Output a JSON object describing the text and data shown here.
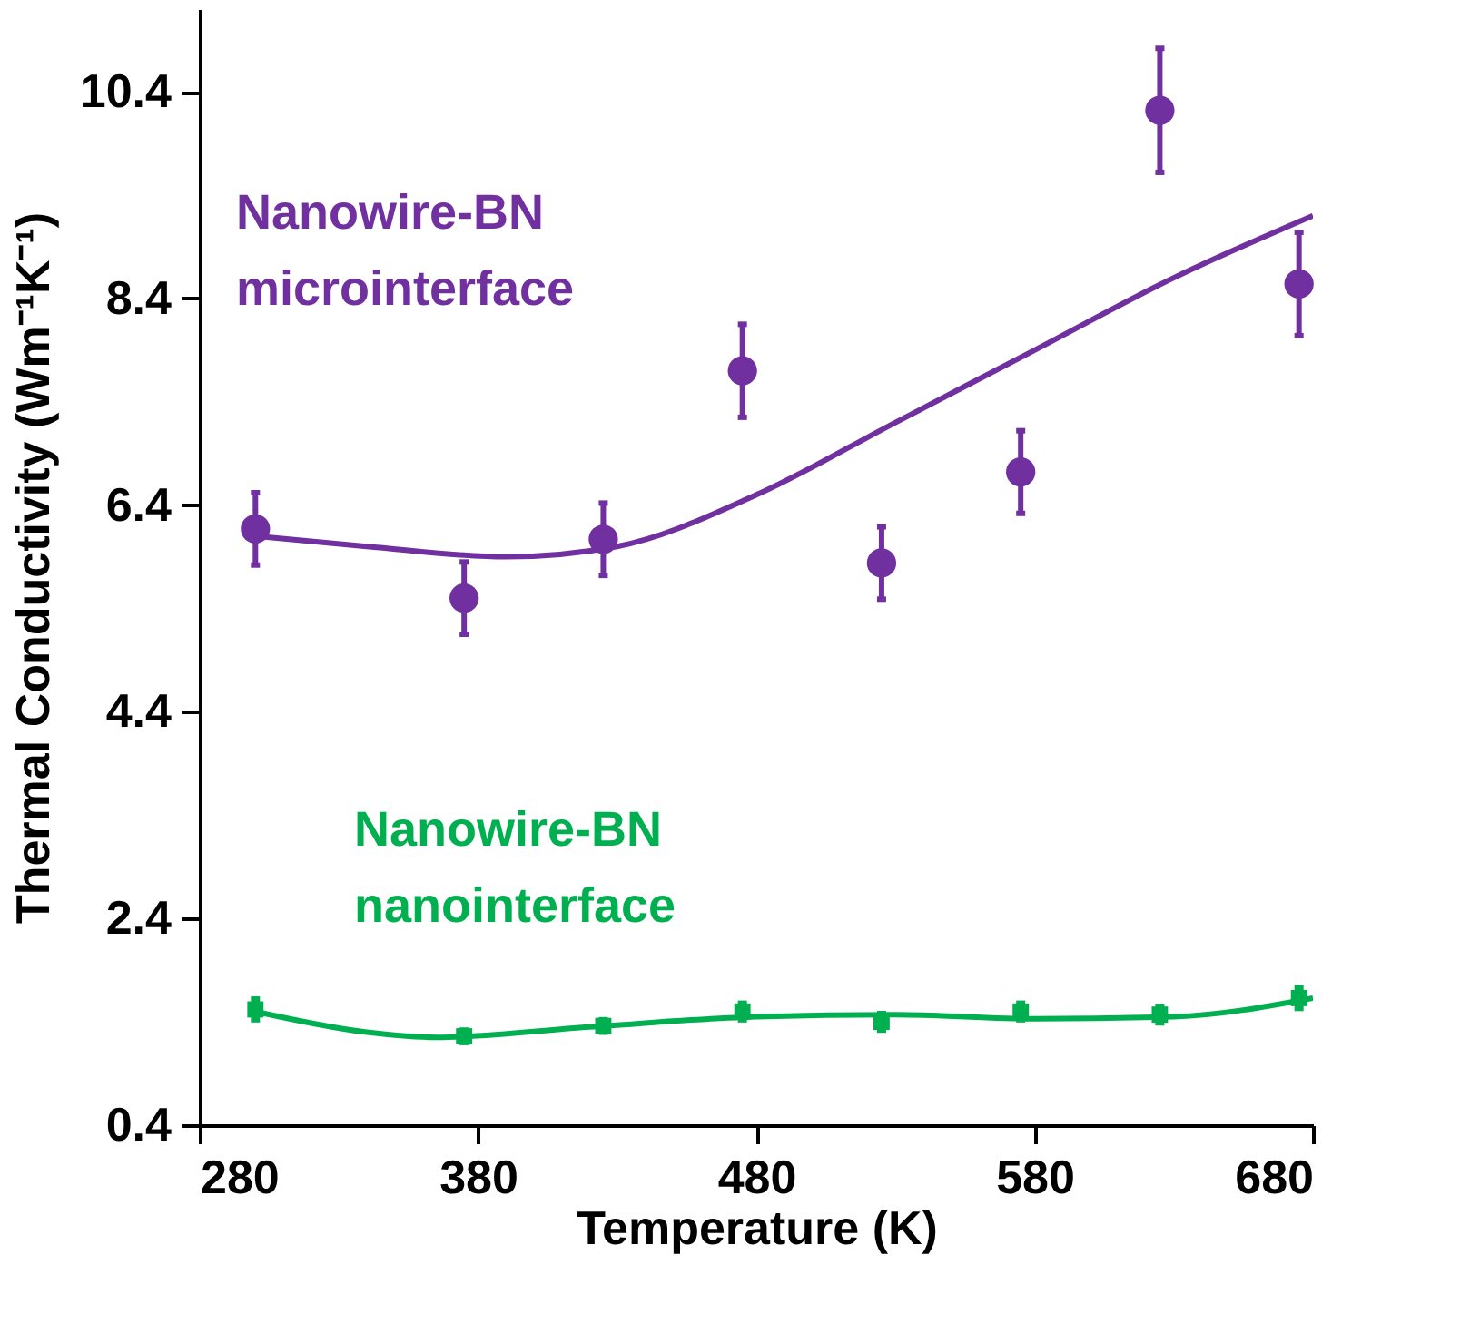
{
  "chart_data": {
    "type": "scatter",
    "xlabel": "Temperature (K)",
    "ylabel": "Thermal Conductivity (Wm⁻¹K⁻¹)",
    "xlim": [
      280,
      680
    ],
    "ylim": [
      0.4,
      11.2
    ],
    "xticks": [
      280,
      380,
      480,
      580,
      680
    ],
    "yticks": [
      0.4,
      2.4,
      4.4,
      6.4,
      8.4,
      10.4
    ],
    "grid": false,
    "series": [
      {
        "marker": "circle",
        "color": "#7030a0",
        "x": [
          300,
          375,
          425,
          475,
          525,
          575,
          625,
          675
        ],
        "values": [
          6.17,
          5.5,
          6.07,
          7.7,
          5.84,
          6.72,
          10.22,
          8.54
        ],
        "errors": [
          0.35,
          0.35,
          0.35,
          0.45,
          0.35,
          0.4,
          0.6,
          0.5
        ]
      },
      {
        "type": "line",
        "name": "Nanowire-BN\nmicrointerface",
        "color": "#7030a0",
        "x": [
          300,
          340,
          390,
          430,
          480,
          530,
          580,
          630,
          680
        ],
        "values": [
          6.1,
          6.0,
          5.9,
          6.0,
          6.5,
          7.2,
          7.9,
          8.6,
          9.2
        ]
      },
      {
        "marker": "square",
        "color": "#00b050",
        "x": [
          300,
          375,
          425,
          475,
          525,
          575,
          625,
          675
        ],
        "values": [
          1.52,
          1.26,
          1.36,
          1.5,
          1.4,
          1.5,
          1.47,
          1.63
        ],
        "errors": [
          0.1,
          0.06,
          0.06,
          0.08,
          0.08,
          0.08,
          0.08,
          0.1
        ]
      },
      {
        "type": "line",
        "name": "Nanowire-BN\nnanointerface",
        "color": "#00b050",
        "x": [
          300,
          340,
          365,
          420,
          480,
          530,
          580,
          630,
          680
        ],
        "values": [
          1.5,
          1.3,
          1.25,
          1.35,
          1.45,
          1.47,
          1.43,
          1.45,
          1.63
        ]
      }
    ]
  }
}
